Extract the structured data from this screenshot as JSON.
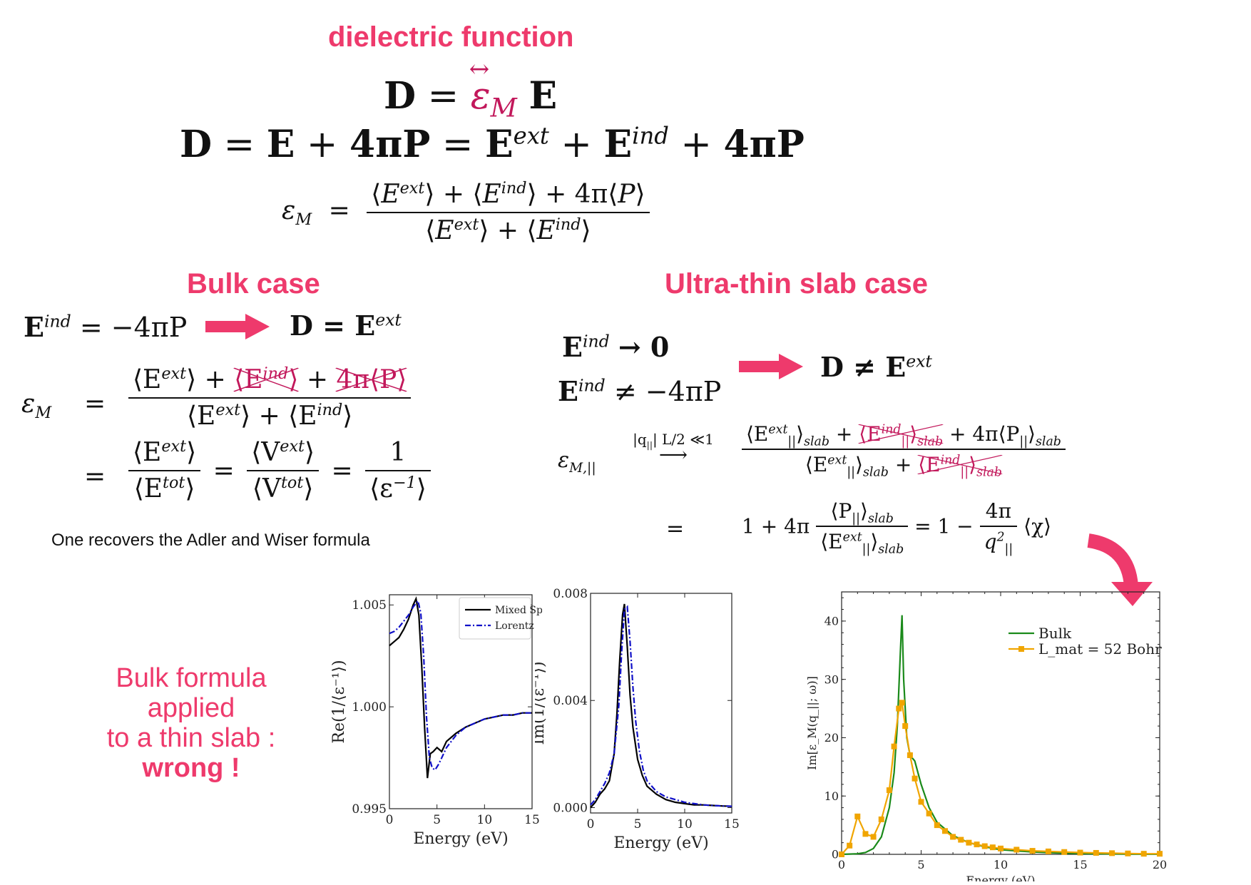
{
  "header": {
    "title": "dielectric  function"
  },
  "equations": {
    "eq1": {
      "lhs": "D",
      "eq": "=",
      "eps": "ε",
      "arrow": "↔",
      "sub": "M",
      "rhs": "E"
    },
    "eq2": {
      "text_D": "D",
      "text_eq": "=",
      "text_E": "E",
      "plus1": "+",
      "four_pi_P": "4πP",
      "eq2": "=",
      "E_ext": "E",
      "ext": "ext",
      "plus2": "+",
      "E_ind": "E",
      "ind": "ind",
      "plus3": "+",
      "four_pi_P2": "4πP"
    },
    "eq3": {
      "lhs": "ε",
      "lhs_sub": "M",
      "eq": "=",
      "num": "⟨E^ext⟩ + ⟨E^ind⟩ + 4π⟨P⟩",
      "den": "⟨E^ext⟩ + ⟨E^ind⟩"
    }
  },
  "bulk": {
    "title": "Bulk case",
    "relation_lhs": "E",
    "relation_sup": "ind",
    "relation_rhs": "= −4πP",
    "result": "D = E",
    "result_sup": "ext",
    "eps_label": "ε",
    "eps_sub": "M",
    "line1_eq": "=",
    "line1_num_a": "⟨E",
    "line1_num_a_sup": "ext",
    "line1_num_a_close": "⟩ +",
    "line1_num_b": "⟨E",
    "line1_num_b_sup": "ind",
    "line1_num_b_close": "⟩",
    "line1_num_plus": "+",
    "line1_num_c": "4π⟨P⟩",
    "line1_den": "⟨E",
    "line1_den_sup": "ext",
    "line1_den_mid": "⟩ + ⟨E",
    "line1_den_sup2": "ind",
    "line1_den_close": "⟩",
    "line2_eq": "=",
    "f1_num": "⟨E",
    "f1_num_sup": "ext",
    "f1_num_close": "⟩",
    "f1_den": "⟨E",
    "f1_den_sup": "tot",
    "f1_den_close": "⟩",
    "eq_a": "=",
    "f2_num": "⟨V",
    "f2_num_sup": "ext",
    "f2_num_close": "⟩",
    "f2_den": "⟨V",
    "f2_den_sup": "tot",
    "f2_den_close": "⟩",
    "eq_b": "=",
    "f3_num": "1",
    "f3_den": "⟨ε",
    "f3_den_sup": "−1",
    "f3_den_close": "⟩",
    "note": "One recovers the Adler and Wiser formula"
  },
  "slab": {
    "title": "Ultra-thin slab case",
    "r1_lhs": "E",
    "r1_sup": "ind",
    "r1_rhs": "→ 0",
    "r2_lhs": "E",
    "r2_sup": "ind",
    "r2_rhs": "≠ −4πP",
    "result": "D ≠ E",
    "result_sup": "ext",
    "eps_label": "ε",
    "eps_sub": "M,||",
    "limit_cond": "|q",
    "limit_cond_sub": "||",
    "limit_cond_rest": "| L/2 ≪1",
    "num_a": "⟨E",
    "num_a_sup": "ext",
    "num_a_sub": "||",
    "num_a_close": "⟩",
    "num_a_slab": "slab",
    "plus": "+",
    "num_b": "⟨E",
    "num_b_sup": "ind",
    "num_b_sub": "||",
    "num_b_close": "⟩",
    "num_b_slab": "slab",
    "num_c": "+ 4π⟨P",
    "num_c_sub": "||",
    "num_c_close": "⟩",
    "num_c_slab": "slab",
    "den_a": "⟨E",
    "den_a_sup": "ext",
    "den_a_sub": "||",
    "den_a_close": "⟩",
    "den_a_slab": "slab",
    "den_plus": "+",
    "den_b": "⟨E",
    "den_b_sup": "ind",
    "den_b_sub": "||",
    "den_b_close": "⟩",
    "den_b_slab": "slab",
    "line2_eq": "=",
    "line2_pre": "1 + 4π",
    "l2_num": "⟨P",
    "l2_num_sub": "||",
    "l2_num_close": "⟩",
    "l2_num_slab": "slab",
    "l2_den": "⟨E",
    "l2_den_sup": "ext",
    "l2_den_sub": "||",
    "l2_den_close": "⟩",
    "l2_den_slab": "slab",
    "l2_mid": "= 1 −",
    "l2_f_num": "4π",
    "l2_f_den": "q",
    "l2_f_den_sup": "2",
    "l2_f_den_sub": "||",
    "l2_chi": "⟨χ⟩"
  },
  "wrong_note": {
    "line1": "Bulk formula applied",
    "line2": "to a thin slab :",
    "line3": "wrong !"
  },
  "colors": {
    "accent": "#ee3a6c",
    "strike": "#c2185b",
    "bulk": "#1a8a1a",
    "slab": "#f0a500",
    "mixed": "#000000",
    "lorentz": "#1010c8"
  },
  "chart_data": [
    {
      "type": "line",
      "xlabel": "Energy (eV)",
      "ylabel": "Re(1/⟨ε⁻¹⟩)",
      "xlim": [
        0,
        15
      ],
      "ylim": [
        0.995,
        1.0055
      ],
      "xticks": [
        "0",
        "5",
        "10",
        "15"
      ],
      "yticks": [
        "0.995",
        "1.000",
        "1.005"
      ],
      "ytick_values": [
        0.995,
        1.0,
        1.005
      ],
      "legend": "top-right",
      "series": [
        {
          "name": "Mixed Space",
          "style": "solid",
          "x": [
            0,
            0.5,
            1,
            1.5,
            2,
            2.5,
            2.8,
            3.1,
            3.4,
            3.7,
            4.0,
            4.3,
            4.6,
            5.0,
            5.5,
            6,
            7,
            8,
            9,
            10,
            11,
            12,
            13,
            14,
            15
          ],
          "y": [
            1.003,
            1.0032,
            1.0034,
            1.0038,
            1.0043,
            1.005,
            1.0053,
            1.0045,
            1.002,
            0.999,
            0.9965,
            0.9977,
            0.9978,
            0.998,
            0.9978,
            0.9983,
            0.9987,
            0.999,
            0.9992,
            0.9994,
            0.9995,
            0.9996,
            0.9996,
            0.9997,
            0.9997
          ]
        },
        {
          "name": "Lorentz",
          "style": "dashdot",
          "x": [
            0,
            0.5,
            1,
            1.5,
            2,
            2.5,
            3.0,
            3.3,
            3.6,
            3.9,
            4.2,
            4.5,
            4.8,
            5.2,
            5.6,
            6,
            7,
            8,
            9,
            10,
            11,
            12,
            13,
            14,
            15
          ],
          "y": [
            1.0036,
            1.0037,
            1.0039,
            1.0042,
            1.0045,
            1.0049,
            1.0052,
            1.0046,
            1.0025,
            0.9995,
            0.9975,
            0.997,
            0.9969,
            0.9972,
            0.9976,
            0.998,
            0.9986,
            0.999,
            0.9992,
            0.9994,
            0.9995,
            0.9996,
            0.9996,
            0.9997,
            0.9997
          ]
        }
      ]
    },
    {
      "type": "line",
      "xlabel": "Energy (eV)",
      "ylabel": "Im(1/⟨ε⁻¹⟩)",
      "xlim": [
        0,
        15
      ],
      "ylim": [
        -0.0002,
        0.008
      ],
      "xticks": [
        "0",
        "5",
        "10",
        "15"
      ],
      "yticks": [
        "0.000",
        "0.004",
        "0.008"
      ],
      "ytick_values": [
        0.0,
        0.004,
        0.008
      ],
      "series": [
        {
          "name": "Mixed Space",
          "style": "solid",
          "x": [
            0,
            0.5,
            1,
            1.5,
            2,
            2.5,
            2.8,
            3.1,
            3.4,
            3.6,
            3.9,
            4.2,
            4.5,
            5,
            5.5,
            6,
            7,
            8,
            9,
            10,
            11,
            12,
            13,
            14,
            15
          ],
          "y": [
            0.0,
            0.0002,
            0.0005,
            0.0007,
            0.001,
            0.002,
            0.0035,
            0.0055,
            0.0072,
            0.0076,
            0.006,
            0.0042,
            0.003,
            0.0018,
            0.0012,
            0.0008,
            0.0005,
            0.0003,
            0.0002,
            0.00015,
            0.0001,
            0.0001,
            8e-05,
            6e-05,
            5e-05
          ]
        },
        {
          "name": "Lorentz",
          "style": "dashdot",
          "x": [
            0,
            0.5,
            1,
            1.5,
            2,
            2.5,
            3.0,
            3.3,
            3.6,
            3.9,
            4.2,
            4.5,
            4.8,
            5.2,
            5.6,
            6,
            7,
            8,
            9,
            10,
            11,
            12,
            13,
            14,
            15
          ],
          "y": [
            0.0001,
            0.0003,
            0.0006,
            0.0009,
            0.0013,
            0.002,
            0.0038,
            0.0058,
            0.0074,
            0.0075,
            0.0062,
            0.0045,
            0.0032,
            0.0021,
            0.0014,
            0.001,
            0.0006,
            0.0004,
            0.0003,
            0.0002,
            0.00015,
            0.0001,
            8e-05,
            6e-05,
            5e-05
          ]
        }
      ]
    },
    {
      "type": "line",
      "xlabel": "Energy (eV)",
      "ylabel": "Im[ε_M(q_||; ω)]",
      "xlim": [
        0,
        20
      ],
      "ylim": [
        0,
        45
      ],
      "xticks": [
        "0",
        "5",
        "10",
        "15",
        "20"
      ],
      "yticks": [
        "0",
        "10",
        "20",
        "30",
        "40"
      ],
      "ytick_values": [
        0,
        10,
        20,
        30,
        40
      ],
      "legend": "top-right",
      "series": [
        {
          "name": "Bulk",
          "style": "solid",
          "x": [
            0,
            1,
            1.5,
            2,
            2.5,
            3,
            3.3,
            3.5,
            3.7,
            3.8,
            3.9,
            4.1,
            4.3,
            4.6,
            5,
            5.5,
            6,
            7,
            8,
            9,
            10,
            12,
            14,
            16,
            18,
            20
          ],
          "y": [
            0,
            0.1,
            0.3,
            1.0,
            3.0,
            8,
            14,
            22,
            35,
            41,
            30,
            20,
            17,
            16,
            12,
            8,
            5.5,
            3.2,
            2.0,
            1.3,
            0.8,
            0.4,
            0.2,
            0.1,
            0.05,
            0.02
          ]
        },
        {
          "name": "L_mat = 52 Bohr",
          "style": "markers",
          "x": [
            0,
            0.5,
            1.0,
            1.5,
            2.0,
            2.5,
            3.0,
            3.3,
            3.6,
            3.8,
            4.0,
            4.3,
            4.6,
            5.0,
            5.5,
            6.0,
            6.5,
            7.0,
            7.5,
            8,
            8.5,
            9,
            9.5,
            10,
            11,
            12,
            13,
            14,
            15,
            16,
            17,
            18,
            19,
            20
          ],
          "y": [
            0,
            1.5,
            6.5,
            3.5,
            3.0,
            6.0,
            11,
            18.5,
            25,
            26,
            22,
            17,
            13,
            9,
            7,
            5,
            4,
            3,
            2.5,
            2,
            1.7,
            1.4,
            1.2,
            1,
            0.8,
            0.6,
            0.5,
            0.4,
            0.3,
            0.25,
            0.2,
            0.15,
            0.1,
            0.1
          ]
        }
      ]
    }
  ]
}
